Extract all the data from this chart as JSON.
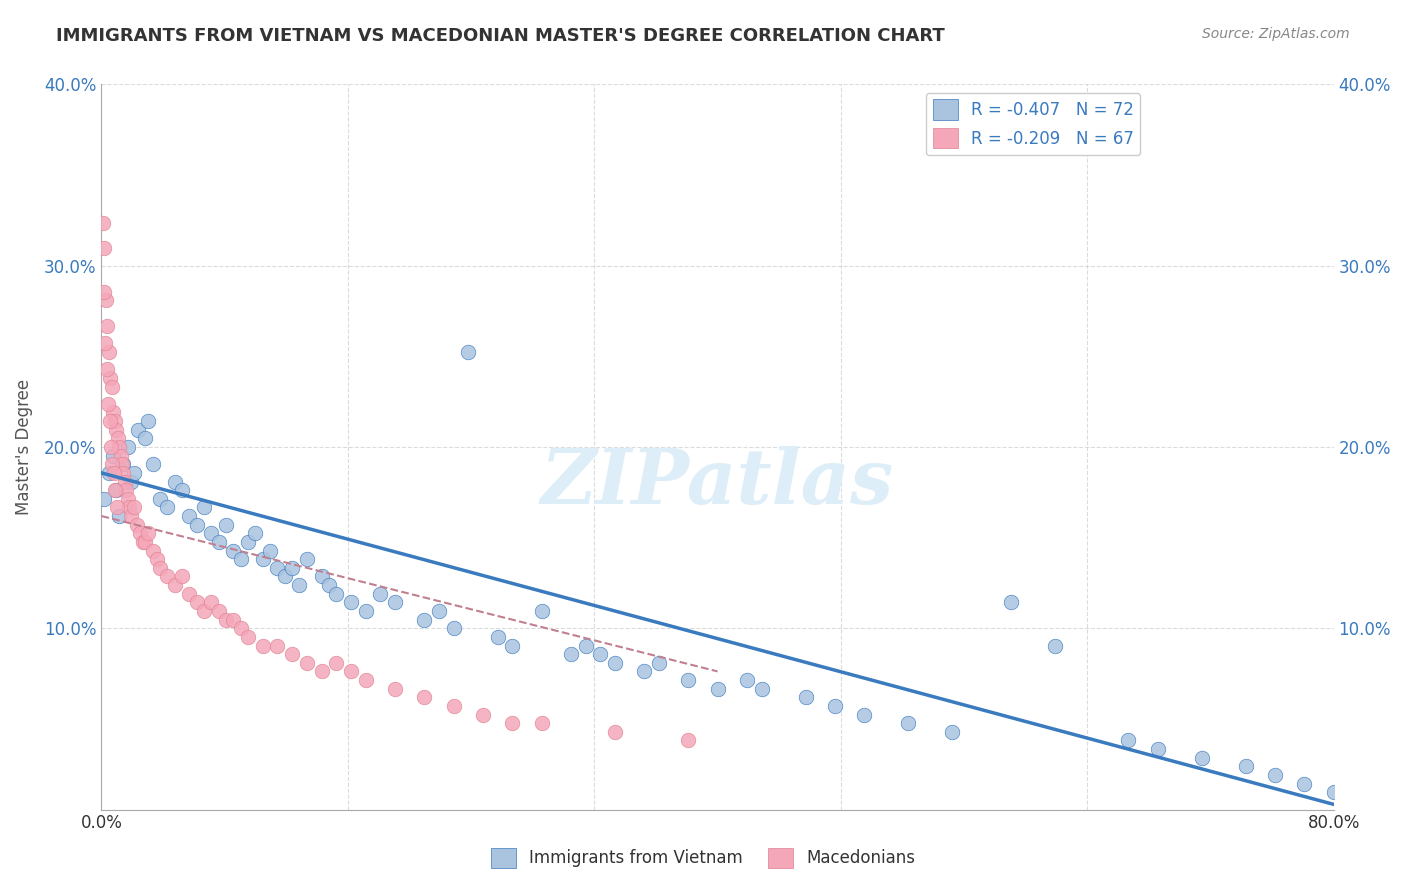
{
  "title": "IMMIGRANTS FROM VIETNAM VS MACEDONIAN MASTER'S DEGREE CORRELATION CHART",
  "source": "Source: ZipAtlas.com",
  "ylabel": "Master's Degree",
  "legend_label1": "Immigrants from Vietnam",
  "legend_label2": "Macedonians",
  "r1": -0.407,
  "n1": 72,
  "r2": -0.209,
  "n2": 67,
  "color_blue": "#aac4e0",
  "color_pink": "#f4a7b9",
  "color_blue_line": "#3a7abf",
  "color_pink_line": "#c08090",
  "watermark": "ZIPatlas",
  "blue_points": [
    [
      0.2,
      18.0
    ],
    [
      0.5,
      19.5
    ],
    [
      0.8,
      20.5
    ],
    [
      1.0,
      18.5
    ],
    [
      1.2,
      17.0
    ],
    [
      1.5,
      20.0
    ],
    [
      1.8,
      21.0
    ],
    [
      2.0,
      19.0
    ],
    [
      2.2,
      19.5
    ],
    [
      2.5,
      22.0
    ],
    [
      3.0,
      21.5
    ],
    [
      3.2,
      22.5
    ],
    [
      3.5,
      20.0
    ],
    [
      4.0,
      18.0
    ],
    [
      4.5,
      17.5
    ],
    [
      5.0,
      19.0
    ],
    [
      5.5,
      18.5
    ],
    [
      6.0,
      17.0
    ],
    [
      6.5,
      16.5
    ],
    [
      7.0,
      17.5
    ],
    [
      7.5,
      16.0
    ],
    [
      8.0,
      15.5
    ],
    [
      8.5,
      16.5
    ],
    [
      9.0,
      15.0
    ],
    [
      9.5,
      14.5
    ],
    [
      10.0,
      15.5
    ],
    [
      10.5,
      16.0
    ],
    [
      11.0,
      14.5
    ],
    [
      11.5,
      15.0
    ],
    [
      12.0,
      14.0
    ],
    [
      12.5,
      13.5
    ],
    [
      13.0,
      14.0
    ],
    [
      13.5,
      13.0
    ],
    [
      14.0,
      14.5
    ],
    [
      15.0,
      13.5
    ],
    [
      15.5,
      13.0
    ],
    [
      16.0,
      12.5
    ],
    [
      17.0,
      12.0
    ],
    [
      18.0,
      11.5
    ],
    [
      19.0,
      12.5
    ],
    [
      20.0,
      12.0
    ],
    [
      22.0,
      11.0
    ],
    [
      23.0,
      11.5
    ],
    [
      24.0,
      10.5
    ],
    [
      25.0,
      26.5
    ],
    [
      27.0,
      10.0
    ],
    [
      28.0,
      9.5
    ],
    [
      30.0,
      11.5
    ],
    [
      32.0,
      9.0
    ],
    [
      33.0,
      9.5
    ],
    [
      34.0,
      9.0
    ],
    [
      35.0,
      8.5
    ],
    [
      37.0,
      8.0
    ],
    [
      38.0,
      8.5
    ],
    [
      40.0,
      7.5
    ],
    [
      42.0,
      7.0
    ],
    [
      44.0,
      7.5
    ],
    [
      45.0,
      7.0
    ],
    [
      48.0,
      6.5
    ],
    [
      50.0,
      6.0
    ],
    [
      52.0,
      5.5
    ],
    [
      55.0,
      5.0
    ],
    [
      58.0,
      4.5
    ],
    [
      62.0,
      12.0
    ],
    [
      65.0,
      9.5
    ],
    [
      70.0,
      4.0
    ],
    [
      72.0,
      3.5
    ],
    [
      75.0,
      3.0
    ],
    [
      78.0,
      2.5
    ],
    [
      80.0,
      2.0
    ],
    [
      82.0,
      1.5
    ],
    [
      84.0,
      1.0
    ]
  ],
  "pink_points": [
    [
      0.1,
      34.0
    ],
    [
      0.2,
      32.5
    ],
    [
      0.3,
      29.5
    ],
    [
      0.4,
      28.0
    ],
    [
      0.5,
      26.5
    ],
    [
      0.6,
      25.0
    ],
    [
      0.7,
      24.5
    ],
    [
      0.8,
      23.0
    ],
    [
      0.9,
      22.5
    ],
    [
      1.0,
      22.0
    ],
    [
      1.1,
      21.5
    ],
    [
      1.2,
      21.0
    ],
    [
      1.3,
      20.5
    ],
    [
      1.4,
      20.0
    ],
    [
      1.5,
      19.5
    ],
    [
      1.6,
      19.0
    ],
    [
      1.7,
      18.5
    ],
    [
      1.8,
      18.0
    ],
    [
      1.9,
      17.5
    ],
    [
      2.0,
      17.0
    ],
    [
      2.2,
      17.5
    ],
    [
      2.4,
      16.5
    ],
    [
      2.6,
      16.0
    ],
    [
      2.8,
      15.5
    ],
    [
      3.0,
      15.5
    ],
    [
      3.2,
      16.0
    ],
    [
      3.5,
      15.0
    ],
    [
      3.8,
      14.5
    ],
    [
      4.0,
      14.0
    ],
    [
      4.5,
      13.5
    ],
    [
      5.0,
      13.0
    ],
    [
      5.5,
      13.5
    ],
    [
      6.0,
      12.5
    ],
    [
      6.5,
      12.0
    ],
    [
      7.0,
      11.5
    ],
    [
      7.5,
      12.0
    ],
    [
      8.0,
      11.5
    ],
    [
      8.5,
      11.0
    ],
    [
      9.0,
      11.0
    ],
    [
      9.5,
      10.5
    ],
    [
      10.0,
      10.0
    ],
    [
      11.0,
      9.5
    ],
    [
      12.0,
      9.5
    ],
    [
      13.0,
      9.0
    ],
    [
      14.0,
      8.5
    ],
    [
      15.0,
      8.0
    ],
    [
      16.0,
      8.5
    ],
    [
      17.0,
      8.0
    ],
    [
      18.0,
      7.5
    ],
    [
      20.0,
      7.0
    ],
    [
      22.0,
      6.5
    ],
    [
      24.0,
      6.0
    ],
    [
      26.0,
      5.5
    ],
    [
      28.0,
      5.0
    ],
    [
      30.0,
      5.0
    ],
    [
      35.0,
      4.5
    ],
    [
      40.0,
      4.0
    ],
    [
      0.15,
      30.0
    ],
    [
      0.25,
      27.0
    ],
    [
      0.35,
      25.5
    ],
    [
      0.45,
      23.5
    ],
    [
      0.55,
      22.5
    ],
    [
      0.65,
      21.0
    ],
    [
      0.75,
      20.0
    ],
    [
      0.85,
      19.5
    ],
    [
      0.95,
      18.5
    ],
    [
      1.05,
      17.5
    ]
  ],
  "xlim": [
    0,
    84
  ],
  "ylim": [
    0,
    42
  ],
  "xticks": [
    0,
    16.8,
    33.6,
    50.4,
    67.2,
    84.0
  ],
  "xticklabels": [
    "0.0%",
    "",
    "",
    "",
    "",
    "80.0%"
  ],
  "yticks": [
    0,
    10.5,
    21.0,
    31.5,
    42.0
  ],
  "yticklabels": [
    "",
    "10.0%",
    "20.0%",
    "30.0%",
    "40.0%"
  ],
  "grid_color": "#cccccc",
  "background_color": "#ffffff"
}
